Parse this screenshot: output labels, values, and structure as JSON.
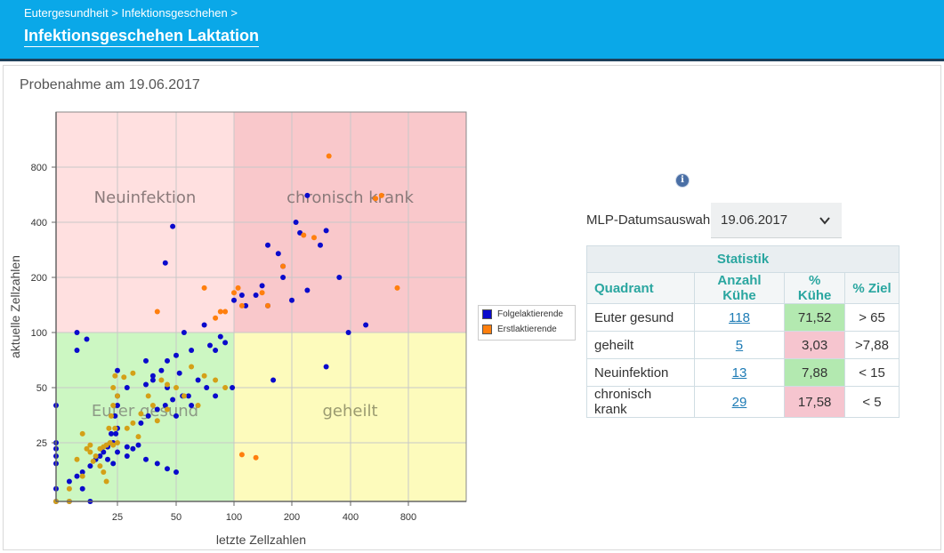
{
  "header": {
    "breadcrumb": "Eutergesundheit > Infektionsgeschehen >",
    "title": "Infektionsgeschehen Laktation"
  },
  "sample_date_label": "Probenahme am 19.06.2017",
  "colors": {
    "header_bg": "#0aa8e8",
    "folge": "#0a0acc",
    "erst": "#ff7f0e",
    "q_neuinfektion": "#ffe0e0",
    "q_chronisch": "#f9c8cb",
    "q_gesund": "#ccf7c2",
    "q_geheilt": "#fdfbbc",
    "good_cell": "#b3e9b0",
    "bad_cell": "#f6c5cf"
  },
  "chart_data": {
    "type": "scatter",
    "xlabel": "letzte Zellzahlen",
    "ylabel": "aktuelle Zellzahlen",
    "x_ticks": [
      "25",
      "50",
      "100",
      "200",
      "400",
      "800"
    ],
    "y_ticks": [
      "25",
      "50",
      "100",
      "200",
      "400",
      "800"
    ],
    "x_range": [
      0,
      1600
    ],
    "y_range": [
      0,
      1700
    ],
    "threshold": 100,
    "quadrant_labels": {
      "top_left": "Neuinfektion",
      "top_right": "chronisch krank",
      "bottom_left": "Euter gesund",
      "bottom_right": "geheilt"
    },
    "series": [
      {
        "name": "Folgelaktierende",
        "points": [
          [
            28,
            50
          ],
          [
            48,
            380
          ],
          [
            44,
            240
          ],
          [
            240,
            560
          ],
          [
            210,
            400
          ],
          [
            170,
            270
          ],
          [
            150,
            300
          ],
          [
            180,
            200
          ],
          [
            220,
            350
          ],
          [
            300,
            360
          ],
          [
            280,
            300
          ],
          [
            350,
            200
          ],
          [
            390,
            100
          ],
          [
            480,
            110
          ],
          [
            300,
            65
          ],
          [
            160,
            55
          ],
          [
            130,
            160
          ],
          [
            180,
            230
          ],
          [
            200,
            150
          ],
          [
            100,
            150
          ],
          [
            115,
            140
          ],
          [
            110,
            160
          ],
          [
            140,
            180
          ],
          [
            85,
            95
          ],
          [
            90,
            88
          ],
          [
            80,
            80
          ],
          [
            75,
            85
          ],
          [
            70,
            110
          ],
          [
            55,
            100
          ],
          [
            60,
            80
          ],
          [
            50,
            75
          ],
          [
            45,
            70
          ],
          [
            42,
            62
          ],
          [
            38,
            58
          ],
          [
            52,
            60
          ],
          [
            65,
            55
          ],
          [
            72,
            50
          ],
          [
            80,
            45
          ],
          [
            98,
            50
          ],
          [
            58,
            45
          ],
          [
            54,
            45
          ],
          [
            48,
            43
          ],
          [
            44,
            40
          ],
          [
            40,
            38
          ],
          [
            36,
            35
          ],
          [
            33,
            32
          ],
          [
            60,
            40
          ],
          [
            50,
            35
          ],
          [
            45,
            50
          ],
          [
            38,
            55
          ],
          [
            35,
            52
          ],
          [
            25,
            62
          ],
          [
            25,
            45
          ],
          [
            25,
            40
          ],
          [
            22,
            35
          ],
          [
            18,
            28
          ],
          [
            15,
            20
          ],
          [
            12,
            15
          ],
          [
            10,
            12
          ],
          [
            8,
            10
          ],
          [
            6,
            7
          ],
          [
            4,
            5
          ],
          [
            3,
            4
          ],
          [
            2,
            3
          ],
          [
            1,
            2
          ],
          [
            1,
            1
          ],
          [
            2,
            1
          ],
          [
            4,
            2
          ],
          [
            6,
            1
          ],
          [
            1,
            8
          ],
          [
            1,
            12
          ],
          [
            1,
            18
          ],
          [
            1,
            25
          ],
          [
            1,
            40
          ],
          [
            3,
            100
          ],
          [
            5,
            92
          ],
          [
            3,
            80
          ],
          [
            20,
            25
          ],
          [
            23,
            28
          ],
          [
            28,
            20
          ],
          [
            30,
            18
          ],
          [
            32,
            22
          ],
          [
            25,
            15
          ],
          [
            28,
            12
          ],
          [
            35,
            10
          ],
          [
            40,
            8
          ],
          [
            45,
            6
          ],
          [
            50,
            5
          ],
          [
            20,
            8
          ],
          [
            15,
            10
          ],
          [
            25,
            30
          ],
          [
            15,
            22
          ],
          [
            35,
            70
          ],
          [
            150,
            140
          ],
          [
            240,
            170
          ]
        ]
      },
      {
        "name": "Erstlaktierende",
        "points": [
          [
            310,
            920
          ],
          [
            580,
            560
          ],
          [
            540,
            540
          ],
          [
            700,
            175
          ],
          [
            230,
            340
          ],
          [
            260,
            330
          ],
          [
            180,
            230
          ],
          [
            150,
            140
          ],
          [
            140,
            165
          ],
          [
            110,
            140
          ],
          [
            105,
            175
          ],
          [
            100,
            165
          ],
          [
            90,
            130
          ],
          [
            85,
            130
          ],
          [
            70,
            175
          ],
          [
            80,
            120
          ],
          [
            40,
            130
          ],
          [
            110,
            13
          ],
          [
            130,
            11
          ],
          [
            30,
            60
          ],
          [
            27,
            57
          ],
          [
            25,
            45
          ],
          [
            50,
            50
          ],
          [
            55,
            45
          ],
          [
            45,
            52
          ],
          [
            60,
            65
          ],
          [
            70,
            58
          ],
          [
            80,
            55
          ],
          [
            90,
            50
          ],
          [
            65,
            40
          ],
          [
            20,
            40
          ],
          [
            18,
            35
          ],
          [
            22,
            30
          ],
          [
            28,
            30
          ],
          [
            30,
            32
          ],
          [
            32,
            27
          ],
          [
            25,
            25
          ],
          [
            20,
            22
          ],
          [
            14,
            22
          ],
          [
            12,
            20
          ],
          [
            10,
            18
          ],
          [
            8,
            12
          ],
          [
            6,
            15
          ],
          [
            5,
            18
          ],
          [
            4,
            28
          ],
          [
            6,
            22
          ],
          [
            3,
            10
          ],
          [
            7,
            9
          ],
          [
            10,
            7
          ],
          [
            12,
            5
          ],
          [
            14,
            3
          ],
          [
            4,
            4
          ],
          [
            2,
            2
          ],
          [
            1,
            1
          ],
          [
            2,
            1
          ],
          [
            17,
            25
          ],
          [
            33,
            36
          ],
          [
            38,
            40
          ],
          [
            16,
            30
          ],
          [
            20,
            50
          ],
          [
            22,
            58
          ],
          [
            40,
            33
          ],
          [
            45,
            38
          ],
          [
            36,
            45
          ],
          [
            42,
            55
          ]
        ]
      }
    ]
  },
  "info_icon": "info-icon",
  "mlp": {
    "label": "MLP-Datumsauswahl:",
    "value": "19.06.2017"
  },
  "stats": {
    "caption": "Statistik",
    "headers": [
      "Quadrant",
      "Anzahl Kühe",
      "% Kühe",
      "% Ziel"
    ],
    "rows": [
      {
        "quadrant": "Euter gesund",
        "count": "118",
        "pct": "71,52",
        "target": "> 65",
        "status": "good"
      },
      {
        "quadrant": "geheilt",
        "count": "5",
        "pct": "3,03",
        "target": ">7,88",
        "status": "bad"
      },
      {
        "quadrant": "Neuinfektion",
        "count": "13",
        "pct": "7,88",
        "target": "< 15",
        "status": "good"
      },
      {
        "quadrant": "chronisch krank",
        "count": "29",
        "pct": "17,58",
        "target": "< 5",
        "status": "bad"
      }
    ]
  }
}
